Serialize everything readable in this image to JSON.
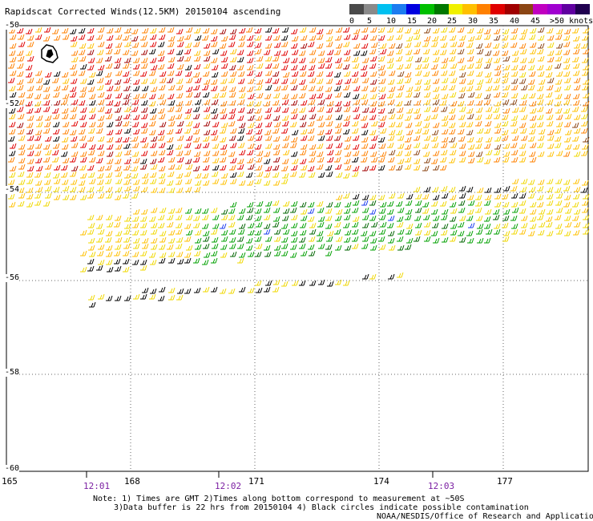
{
  "title": "Rapidscat Corrected Winds(12.5KM) 20150104 ascending",
  "legend": {
    "labels": [
      "0",
      "5",
      "10",
      "15",
      "20",
      "25",
      "30",
      "35",
      "40",
      "45",
      ">50 knots"
    ],
    "colors": [
      "#4a4a4a",
      "#8a8a8a",
      "#00c0f0",
      "#1c7cf0",
      "#0000e0",
      "#00c000",
      "#007800",
      "#f0f000",
      "#ffc000",
      "#ff8000",
      "#e00000",
      "#a00000",
      "#8b4513",
      "#c000c0",
      "#a000d0",
      "#6000a0",
      "#200050"
    ]
  },
  "lat_labels": [
    "-50",
    "-52",
    "-54",
    "-56",
    "-58",
    "-60"
  ],
  "lon_labels": [
    "165",
    "168",
    "171",
    "174",
    "177"
  ],
  "time_labels": [
    "12:01",
    "12:02",
    "12:03"
  ],
  "notes": {
    "line1": "Note: 1) Times are GMT 2)Times along bottom correspond to measurement at ~50S",
    "line2": "3)Data buffer is 22 hrs from 20150104 4) Black circles indicate possible contamination",
    "line3": "NOAA/NESDIS/Office of Research and Applications"
  }
}
